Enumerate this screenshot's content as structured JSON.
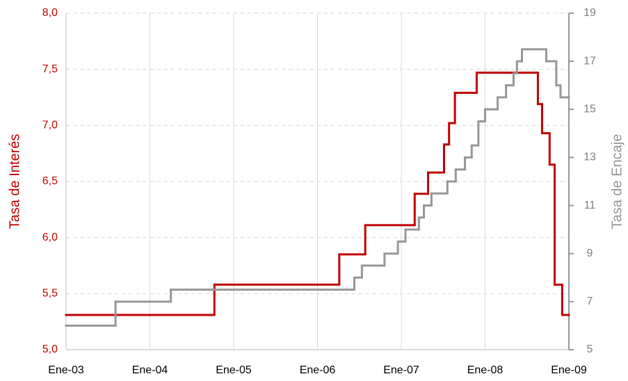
{
  "chart_data": {
    "type": "line",
    "step": "post",
    "y_label": "Tasa de Interés",
    "y2_label": "Tasa de Encaje",
    "xlim": [
      2003,
      2009
    ],
    "xticks": [
      {
        "value": 2003,
        "label": "Ene-03"
      },
      {
        "value": 2004,
        "label": "Ene-04"
      },
      {
        "value": 2005,
        "label": "Ene-05"
      },
      {
        "value": 2006,
        "label": "Ene-06"
      },
      {
        "value": 2007,
        "label": "Ene-07"
      },
      {
        "value": 2008,
        "label": "Ene-08"
      },
      {
        "value": 2009,
        "label": "Ene-09"
      }
    ],
    "ylim": [
      5,
      8
    ],
    "yticks": [
      {
        "value": 5,
        "label": "5,0"
      },
      {
        "value": 5.5,
        "label": "5,5"
      },
      {
        "value": 6,
        "label": "6,0"
      },
      {
        "value": 6.5,
        "label": "6,5"
      },
      {
        "value": 7,
        "label": "7,0"
      },
      {
        "value": 7.5,
        "label": "7,5"
      },
      {
        "value": 8,
        "label": "8,0"
      }
    ],
    "y2lim": [
      5,
      19
    ],
    "y2ticks": [
      5,
      7,
      9,
      11,
      13,
      15,
      17,
      19
    ],
    "grid": true,
    "series": [
      {
        "name": "Tasa de Interés",
        "color": "#c00000",
        "x": [
          2003.0,
          2004.77,
          2006.26,
          2006.57,
          2007.16,
          2007.32,
          2007.51,
          2007.57,
          2007.64,
          2007.9,
          2008.63,
          2008.68,
          2008.77,
          2008.83,
          2008.92
        ],
        "values": [
          5.31,
          5.58,
          5.85,
          6.11,
          6.39,
          6.58,
          6.83,
          7.02,
          7.29,
          7.47,
          7.19,
          6.93,
          6.65,
          5.58,
          5.31
        ]
      },
      {
        "name": "Tasa de Encaje",
        "color": "#969696",
        "axis": "y2",
        "x": [
          2003.0,
          2003.59,
          2004.25,
          2006.44,
          2006.53,
          2006.8,
          2006.96,
          2007.05,
          2007.21,
          2007.27,
          2007.36,
          2007.55,
          2007.65,
          2007.76,
          2007.84,
          2007.92,
          2008.0,
          2008.15,
          2008.25,
          2008.34,
          2008.38,
          2008.44,
          2008.73,
          2008.85,
          2008.9
        ],
        "values": [
          6,
          7,
          7.5,
          8,
          8.5,
          9,
          9.5,
          10,
          10.5,
          11,
          11.5,
          12,
          12.5,
          13,
          13.5,
          14.5,
          15,
          15.5,
          16,
          16.5,
          17,
          17.5,
          17,
          16,
          15.5
        ]
      }
    ]
  }
}
